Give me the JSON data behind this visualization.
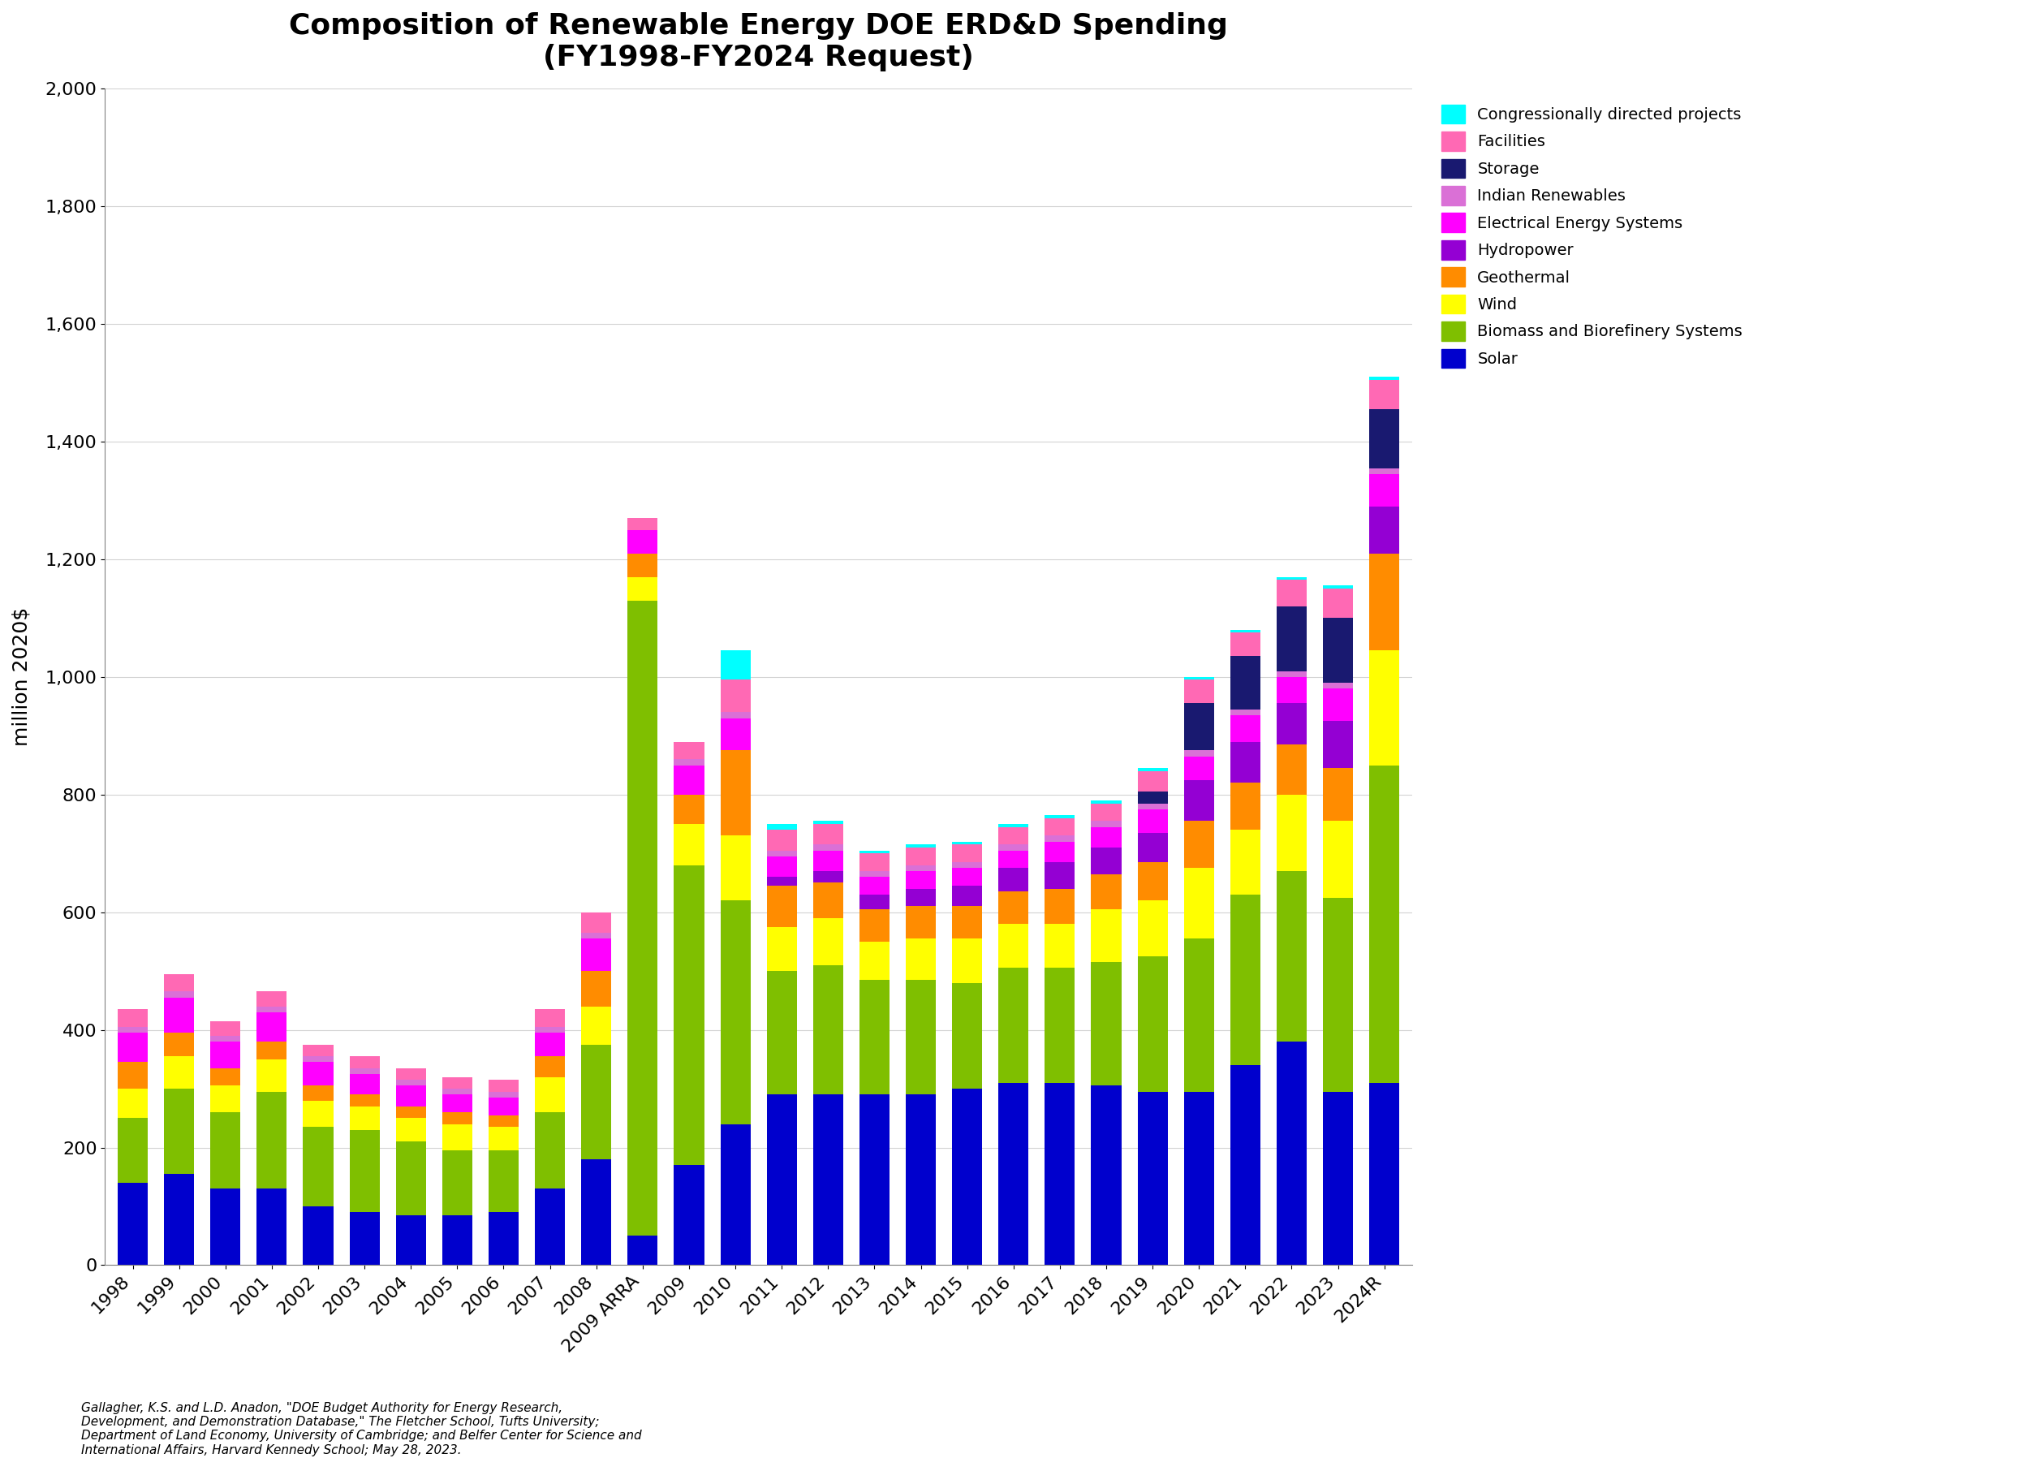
{
  "title": "Composition of Renewable Energy DOE ERD&D Spending\n(FY1998-FY2024 Request)",
  "ylabel": "million 2020$",
  "ylim": [
    0,
    2000
  ],
  "yticks": [
    0,
    200,
    400,
    600,
    800,
    1000,
    1200,
    1400,
    1600,
    1800,
    2000
  ],
  "categories": [
    "1998",
    "1999",
    "2000",
    "2001",
    "2002",
    "2003",
    "2004",
    "2005",
    "2006",
    "2007",
    "2008",
    "2009 ARRA",
    "2009",
    "2010",
    "2011",
    "2012",
    "2013",
    "2014",
    "2015",
    "2016",
    "2017",
    "2018",
    "2019",
    "2020",
    "2021",
    "2022",
    "2023",
    "2024R"
  ],
  "series": {
    "Solar": {
      "color": "#0000CD",
      "values": [
        140,
        155,
        130,
        130,
        100,
        90,
        85,
        85,
        90,
        130,
        180,
        50,
        170,
        240,
        290,
        290,
        290,
        290,
        300,
        310,
        310,
        305,
        295,
        295,
        340,
        380,
        295,
        310
      ]
    },
    "Biomass and Biorefinery Systems": {
      "color": "#7FBF00",
      "values": [
        110,
        145,
        130,
        165,
        135,
        140,
        125,
        110,
        105,
        130,
        195,
        1080,
        510,
        380,
        210,
        220,
        195,
        195,
        180,
        195,
        195,
        210,
        230,
        260,
        290,
        290,
        330,
        540
      ]
    },
    "Wind": {
      "color": "#FFFF00",
      "values": [
        50,
        55,
        45,
        55,
        45,
        40,
        40,
        45,
        40,
        60,
        65,
        40,
        70,
        110,
        75,
        80,
        65,
        70,
        75,
        75,
        75,
        90,
        95,
        120,
        110,
        130,
        130,
        195
      ]
    },
    "Geothermal": {
      "color": "#FF8C00",
      "values": [
        45,
        40,
        30,
        30,
        25,
        20,
        20,
        20,
        20,
        35,
        60,
        40,
        50,
        145,
        70,
        60,
        55,
        55,
        55,
        55,
        60,
        60,
        65,
        80,
        80,
        85,
        90,
        165
      ]
    },
    "Hydropower": {
      "color": "#9400D3",
      "values": [
        0,
        0,
        0,
        0,
        0,
        0,
        0,
        0,
        0,
        0,
        0,
        0,
        0,
        0,
        15,
        20,
        25,
        30,
        35,
        40,
        45,
        45,
        50,
        70,
        70,
        70,
        80,
        80
      ]
    },
    "Electrical Energy Systems": {
      "color": "#FF00FF",
      "values": [
        50,
        60,
        45,
        50,
        40,
        35,
        35,
        30,
        30,
        40,
        55,
        40,
        50,
        55,
        35,
        35,
        30,
        30,
        30,
        30,
        35,
        35,
        40,
        40,
        45,
        45,
        55,
        55
      ]
    },
    "Indian Renewables": {
      "color": "#DA70D6",
      "values": [
        10,
        10,
        10,
        10,
        10,
        10,
        10,
        10,
        10,
        10,
        10,
        0,
        10,
        10,
        10,
        10,
        10,
        10,
        10,
        10,
        10,
        10,
        10,
        10,
        10,
        10,
        10,
        10
      ]
    },
    "Storage": {
      "color": "#191970",
      "values": [
        0,
        0,
        0,
        0,
        0,
        0,
        0,
        0,
        0,
        0,
        0,
        0,
        0,
        0,
        0,
        0,
        0,
        0,
        0,
        0,
        0,
        0,
        20,
        80,
        90,
        110,
        110,
        100
      ]
    },
    "Facilities": {
      "color": "#FF69B4",
      "values": [
        30,
        30,
        25,
        25,
        20,
        20,
        20,
        20,
        20,
        30,
        35,
        20,
        30,
        55,
        35,
        35,
        30,
        30,
        30,
        30,
        30,
        30,
        35,
        40,
        40,
        45,
        50,
        50
      ]
    },
    "Congressionally directed projects": {
      "color": "#00FFFF",
      "values": [
        0,
        0,
        0,
        0,
        0,
        0,
        0,
        0,
        0,
        0,
        0,
        0,
        0,
        50,
        10,
        5,
        5,
        5,
        5,
        5,
        5,
        5,
        5,
        5,
        5,
        5,
        5,
        5
      ]
    }
  },
  "footnote": "Gallagher, K.S. and L.D. Anadon, \"DOE Budget Authority for Energy Research,\nDevelopment, and Demonstration Database,\" The Fletcher School, Tufts University;\nDepartment of Land Economy, University of Cambridge; and Belfer Center for Science and\nInternational Affairs, Harvard Kennedy School; May 28, 2023.",
  "legend_order": [
    "Congressionally directed projects",
    "Facilities",
    "Storage",
    "Indian Renewables",
    "Electrical Energy Systems",
    "Hydropower",
    "Geothermal",
    "Wind",
    "Biomass and Biorefinery Systems",
    "Solar"
  ]
}
